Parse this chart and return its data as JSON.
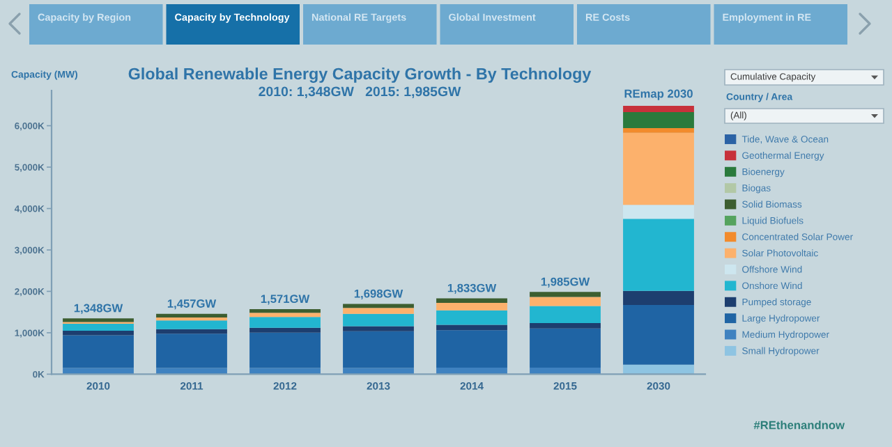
{
  "chart_data": {
    "type": "bar",
    "stacked": true,
    "title": "Global Renewable Energy Capacity Growth - By Technology",
    "subtitle": "2010: 1,348GW   2015: 1,985GW",
    "ylabel": "Capacity (MW)",
    "categories": [
      "2010",
      "2011",
      "2012",
      "2013",
      "2014",
      "2015",
      "2030"
    ],
    "series": [
      {
        "name": "Small Hydropower",
        "color": "#8ec4e2",
        "values": [
          0,
          0,
          0,
          0,
          0,
          0,
          230
        ]
      },
      {
        "name": "Medium Hydropower",
        "color": "#3f82c0",
        "values": [
          150,
          150,
          150,
          150,
          160,
          160,
          0
        ]
      },
      {
        "name": "Large Hydropower",
        "color": "#1f64a4",
        "values": [
          788,
          827,
          851,
          888,
          903,
          945,
          1440
        ]
      },
      {
        "name": "Pumped storage",
        "color": "#1d3e6f",
        "values": [
          110,
          110,
          120,
          120,
          130,
          130,
          340
        ]
      },
      {
        "name": "Onshore Wind",
        "color": "#22b6d0",
        "values": [
          170,
          210,
          260,
          300,
          350,
          410,
          1740
        ]
      },
      {
        "name": "Offshore Wind",
        "color": "#cde6ef",
        "values": [
          0,
          0,
          0,
          0,
          0,
          0,
          340
        ]
      },
      {
        "name": "Solar Photovoltaic",
        "color": "#fcb16c",
        "values": [
          40,
          70,
          100,
          140,
          180,
          220,
          1740
        ]
      },
      {
        "name": "Concentrated Solar Power",
        "color": "#f28b2c",
        "values": [
          0,
          0,
          0,
          0,
          0,
          0,
          110
        ]
      },
      {
        "name": "Liquid Biofuels",
        "color": "#55a35e",
        "values": [
          0,
          0,
          0,
          0,
          0,
          0,
          0
        ]
      },
      {
        "name": "Solid Biomass",
        "color": "#3d5e30",
        "values": [
          90,
          90,
          90,
          100,
          110,
          120,
          0
        ]
      },
      {
        "name": "Biogas",
        "color": "#b2c8a6",
        "values": [
          0,
          0,
          0,
          0,
          0,
          0,
          0
        ]
      },
      {
        "name": "Bioenergy",
        "color": "#2a7a3c",
        "values": [
          0,
          0,
          0,
          0,
          0,
          0,
          390
        ]
      },
      {
        "name": "Geothermal Energy",
        "color": "#c7313b",
        "values": [
          0,
          0,
          0,
          0,
          0,
          0,
          150
        ]
      },
      {
        "name": "Tide, Wave & Ocean",
        "color": "#2b62a5",
        "values": [
          0,
          0,
          0,
          0,
          0,
          0,
          0
        ]
      }
    ],
    "totals": [
      "1,348GW",
      "1,457GW",
      "1,571GW",
      "1,698GW",
      "1,833GW",
      "1,985GW",
      null
    ],
    "annotations": [
      "Capacity by Region",
      "Capacity by Technology",
      "National RE Targets",
      "Global Investment",
      "RE Costs",
      "Employment in RE",
      "Cumulative Capacity",
      "Country / Area",
      "(All)",
      "#REthenandnow",
      {
        "text": "REmap 2030",
        "x": "2030",
        "y": 6480
      }
    ],
    "ylim": [
      0,
      6850
    ],
    "yticks": [
      {
        "value": 0,
        "label": "0K"
      },
      {
        "value": 1000,
        "label": "1,000K"
      },
      {
        "value": 2000,
        "label": "2,000K"
      },
      {
        "value": 3000,
        "label": "3,000K"
      },
      {
        "value": 4000,
        "label": "4,000K"
      },
      {
        "value": 5000,
        "label": "5,000K"
      },
      {
        "value": 6000,
        "label": "6,000K"
      }
    ],
    "legend": "right",
    "grid": false
  }
}
